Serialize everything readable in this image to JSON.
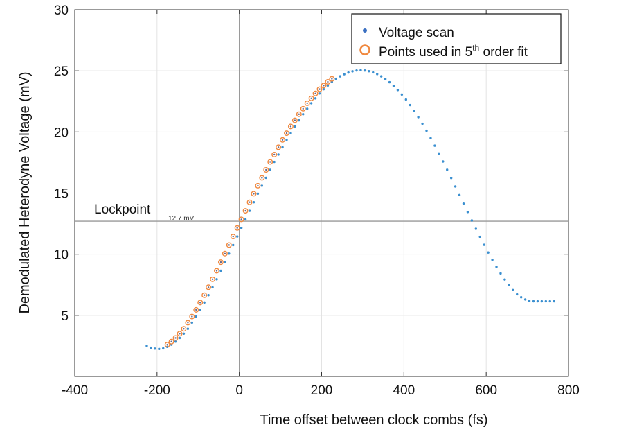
{
  "chart_data": {
    "type": "scatter",
    "title": "",
    "xlabel": "Time offset between clock combs  (fs)",
    "ylabel": "Demodulated Heterodyne Voltage (mV)",
    "xlim": [
      -400,
      800
    ],
    "ylim": [
      0,
      30
    ],
    "xticks": [
      "-400",
      "-200",
      "0",
      "200",
      "400",
      "600",
      "800"
    ],
    "yticks": [
      "5",
      "10",
      "15",
      "20",
      "25",
      "30"
    ],
    "grid": true,
    "legend": {
      "placement": "top-right",
      "entries": [
        {
          "marker": "dot",
          "label": "Voltage scan"
        },
        {
          "marker": "ring",
          "label_prefix": "Points used in 5",
          "label_sup": "th",
          "label_suffix": " order fit"
        }
      ]
    },
    "colors": {
      "scan": "#3a8fd0",
      "fit": "#f0883e",
      "grid": "#e3e3e3",
      "ref": "#999999"
    },
    "annotations": {
      "lockpoint_label": "Lockpoint",
      "lockpoint_value": "12.7 mV",
      "lockpoint_y": 12.7,
      "vertical_line_x": 0
    },
    "series": [
      {
        "name": "Voltage scan",
        "x_start": -225,
        "x_end": 770,
        "x_step": 10,
        "y": [
          2.5,
          2.35,
          2.28,
          2.25,
          2.3,
          2.42,
          2.6,
          2.85,
          3.15,
          3.5,
          3.9,
          4.4,
          4.9,
          5.45,
          6.05,
          6.65,
          7.3,
          7.95,
          8.65,
          9.35,
          10.05,
          10.75,
          11.45,
          12.15,
          12.85,
          13.55,
          14.25,
          14.95,
          15.6,
          16.25,
          16.9,
          17.55,
          18.15,
          18.75,
          19.35,
          19.9,
          20.45,
          20.95,
          21.45,
          21.9,
          22.35,
          22.75,
          23.15,
          23.5,
          23.8,
          24.1,
          24.35,
          24.55,
          24.72,
          24.86,
          24.96,
          25.03,
          25.05,
          25.03,
          24.97,
          24.87,
          24.73,
          24.55,
          24.33,
          24.07,
          23.77,
          23.43,
          23.06,
          22.65,
          22.2,
          21.72,
          21.21,
          20.67,
          20.1,
          19.5,
          18.88,
          18.24,
          17.58,
          16.91,
          16.23,
          15.54,
          14.84,
          14.14,
          13.45,
          12.76,
          12.08,
          11.42,
          10.77,
          10.14,
          9.54,
          8.97,
          8.43,
          7.93,
          7.48,
          7.07,
          6.72,
          6.48,
          6.3,
          6.18,
          6.15,
          6.15,
          6.15,
          6.15,
          6.15,
          6.15
        ]
      },
      {
        "name": "Points used in 5th order fit",
        "x_start": -175,
        "x_end": 225,
        "x_step": 10,
        "y": [
          2.6,
          2.85,
          3.15,
          3.5,
          3.9,
          4.4,
          4.9,
          5.45,
          6.05,
          6.65,
          7.3,
          7.95,
          8.65,
          9.35,
          10.05,
          10.75,
          11.45,
          12.15,
          12.85,
          13.55,
          14.25,
          14.95,
          15.6,
          16.25,
          16.9,
          17.55,
          18.15,
          18.75,
          19.35,
          19.9,
          20.45,
          20.95,
          21.45,
          21.9,
          22.35,
          22.75,
          23.15,
          23.5,
          23.8,
          24.1,
          24.35
        ]
      }
    ]
  }
}
